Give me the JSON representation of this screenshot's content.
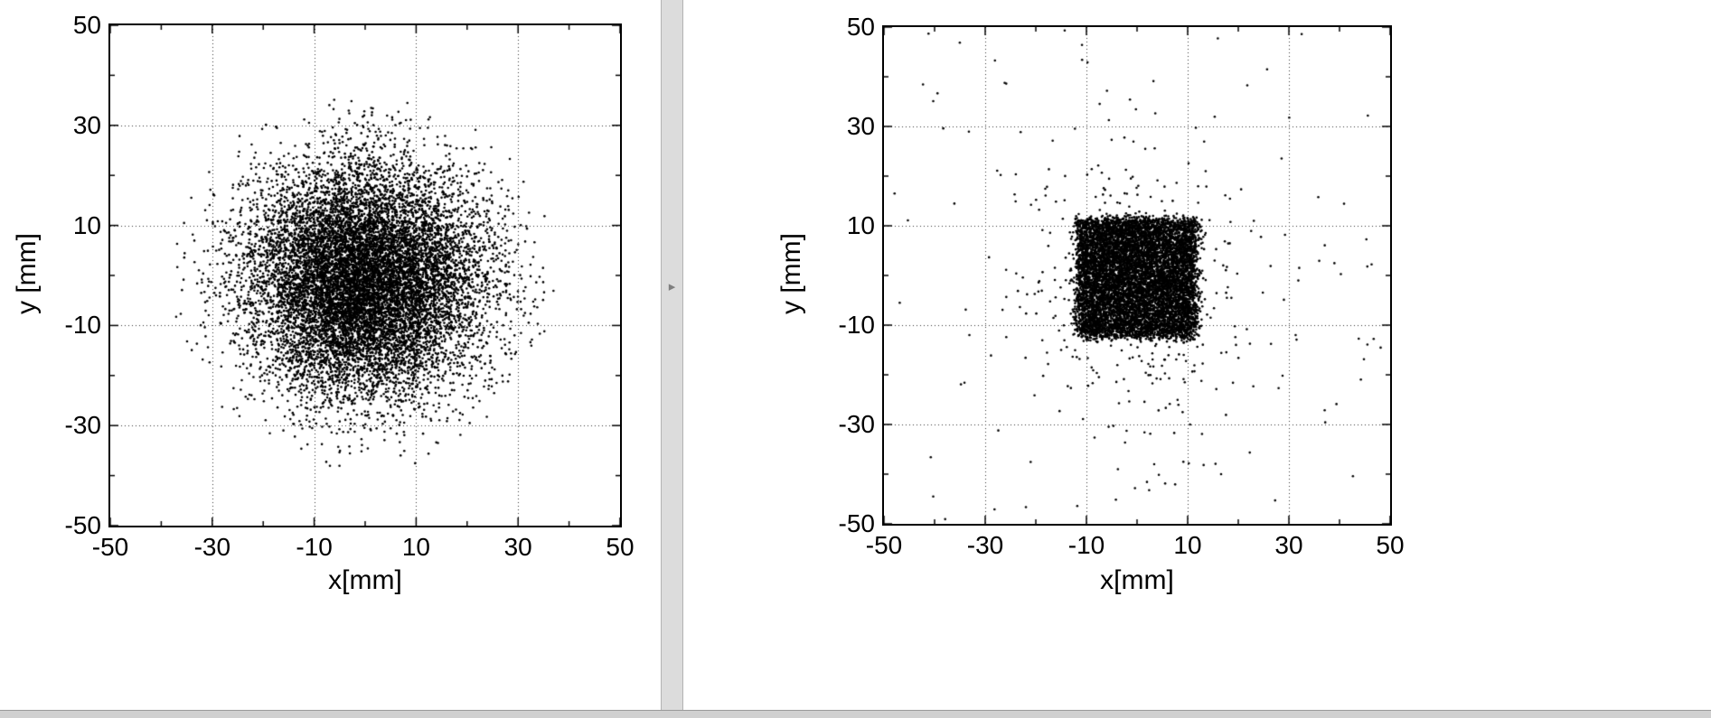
{
  "app": {
    "background": "#ffffff"
  },
  "splitter": {
    "arrow_icon": "▸"
  },
  "chart_data": [
    {
      "type": "scatter",
      "title": "",
      "xlabel": "x[mm]",
      "ylabel": "y [mm]",
      "xlim": [
        -50,
        50
      ],
      "ylim": [
        -50,
        50
      ],
      "major_ticks": [
        -50,
        -30,
        -10,
        10,
        30,
        50
      ],
      "minor_tick_step": 10,
      "grid": "dotted",
      "legend": "none",
      "point_color": "#000000",
      "point_radius_px": 1.3,
      "description": "Round Gaussian beam spot centered near the origin, dense black core within ~15 mm radius, halo extending to ~38 mm",
      "components": [
        {
          "kind": "gaussian",
          "mean": [
            0,
            -1
          ],
          "sigma": [
            11.5,
            11.5
          ],
          "clip_sigma": 3.3,
          "n_points": 12000
        }
      ]
    },
    {
      "type": "scatter",
      "title": "",
      "xlabel": "x[mm]",
      "ylabel": "y [mm]",
      "xlim": [
        -50,
        50
      ],
      "ylim": [
        -50,
        50
      ],
      "major_ticks": [
        -50,
        -30,
        -10,
        10,
        30,
        50
      ],
      "minor_tick_step": 10,
      "grid": "dotted",
      "legend": "none",
      "point_color": "#000000",
      "point_radius_px": 1.3,
      "description": "Collimated square beam spot ~24 mm wide centered near the origin with fuzzy edges, extra scatter below and sparse outliers over the full field",
      "components": [
        {
          "kind": "uniform_square",
          "center": [
            0,
            -0.5
          ],
          "half_width": 11.7,
          "edge_sigma": 0.7,
          "n_points": 9000
        },
        {
          "kind": "gaussian",
          "mean": [
            0,
            -3
          ],
          "sigma": [
            13,
            14
          ],
          "clip_sigma": 3.5,
          "n_points": 380
        },
        {
          "kind": "uniform",
          "n_points": 110
        }
      ]
    }
  ]
}
